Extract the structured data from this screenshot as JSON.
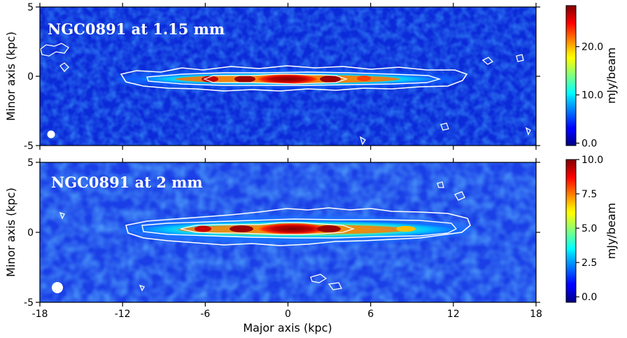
{
  "chart_data": [
    {
      "type": "heatmap",
      "title": "NGC0891 at 1.15 mm",
      "xlabel": "",
      "ylabel": "Minor axis (kpc)",
      "xlim": [
        -18,
        18
      ],
      "ylim": [
        -5,
        5
      ],
      "x_ticks": [
        -18,
        -12,
        -6,
        0,
        6,
        12,
        18
      ],
      "y_ticks": [
        5,
        0,
        -5
      ],
      "y_tick_labels": [
        "5",
        "0",
        "-5"
      ],
      "colorbar": {
        "label": "mJy/beam",
        "min": -0.5,
        "max": 28.5,
        "ticks": [
          0,
          10,
          20
        ],
        "tick_labels": [
          "0.0",
          "10.0",
          "20.0"
        ],
        "colormap": "jet"
      },
      "contour_color": "#ffffff",
      "beam_color": "#ffffff",
      "disk": {
        "x_extent": [
          -12,
          13
        ],
        "peak_x": 0,
        "secondary_peaks_x": [
          -3,
          3,
          -6,
          6
        ]
      }
    },
    {
      "type": "heatmap",
      "title": "NGC0891 at 2 mm",
      "xlabel": "Major axis (kpc)",
      "ylabel": "Minor axis (kpc)",
      "xlim": [
        -18,
        18
      ],
      "ylim": [
        -5,
        5
      ],
      "x_ticks": [
        -18,
        -12,
        -6,
        0,
        6,
        12,
        18
      ],
      "x_tick_labels": [
        "-18",
        "-12",
        "-6",
        "0",
        "6",
        "12",
        "18"
      ],
      "y_ticks": [
        5,
        0,
        -5
      ],
      "y_tick_labels": [
        "5",
        "0",
        "-5"
      ],
      "colorbar": {
        "label": "mJy/beam",
        "min": -0.4,
        "max": 10,
        "ticks": [
          0,
          2.5,
          5,
          7.5,
          10
        ],
        "tick_labels": [
          "0.0",
          "2.5",
          "5.0",
          "7.5",
          "10.0"
        ],
        "colormap": "jet"
      },
      "contour_color": "#ffffff",
      "beam_color": "#ffffff",
      "disk": {
        "x_extent": [
          -11.5,
          13
        ],
        "peak_x": 0,
        "secondary_peaks_x": [
          -3,
          3,
          -6,
          6
        ]
      }
    }
  ]
}
